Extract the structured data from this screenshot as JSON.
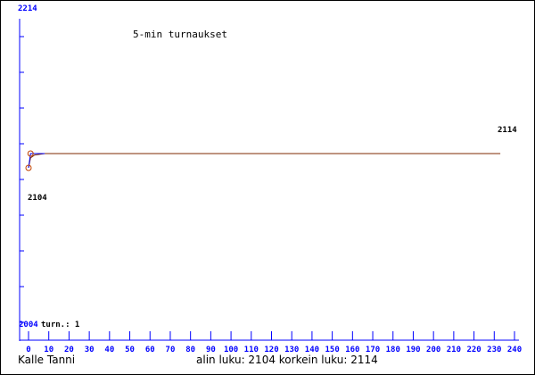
{
  "chart_data": {
    "type": "line",
    "title": "5-min turnaukset",
    "y_top_label": "2214",
    "y_bottom_label": "2004",
    "turn_label": "turn.: 1",
    "max_label": "2114",
    "min_label": "2104",
    "x_ticks": [
      0,
      10,
      20,
      30,
      40,
      50,
      60,
      70,
      80,
      90,
      100,
      110,
      120,
      130,
      140,
      150,
      160,
      170,
      180,
      190,
      200,
      210,
      220,
      230,
      240
    ],
    "xlim": [
      0,
      240
    ],
    "ylim": [
      2004,
      2214
    ],
    "series": [
      {
        "color": "#7f2a00",
        "points": [
          [
            0,
            2104
          ],
          [
            1,
            2111
          ],
          [
            3,
            2113
          ],
          [
            8,
            2114
          ],
          [
            233,
            2114
          ]
        ]
      },
      {
        "color": "#0000ff",
        "points": [
          [
            0,
            2104
          ],
          [
            1,
            2114
          ],
          [
            8,
            2114
          ]
        ]
      }
    ],
    "markers": [
      [
        0,
        2104
      ],
      [
        1,
        2114
      ]
    ],
    "axis_color": "#0000ff"
  },
  "footer": {
    "player": "Kalle Tanni",
    "stats": "alin luku: 2104  korkein luku: 2114"
  }
}
